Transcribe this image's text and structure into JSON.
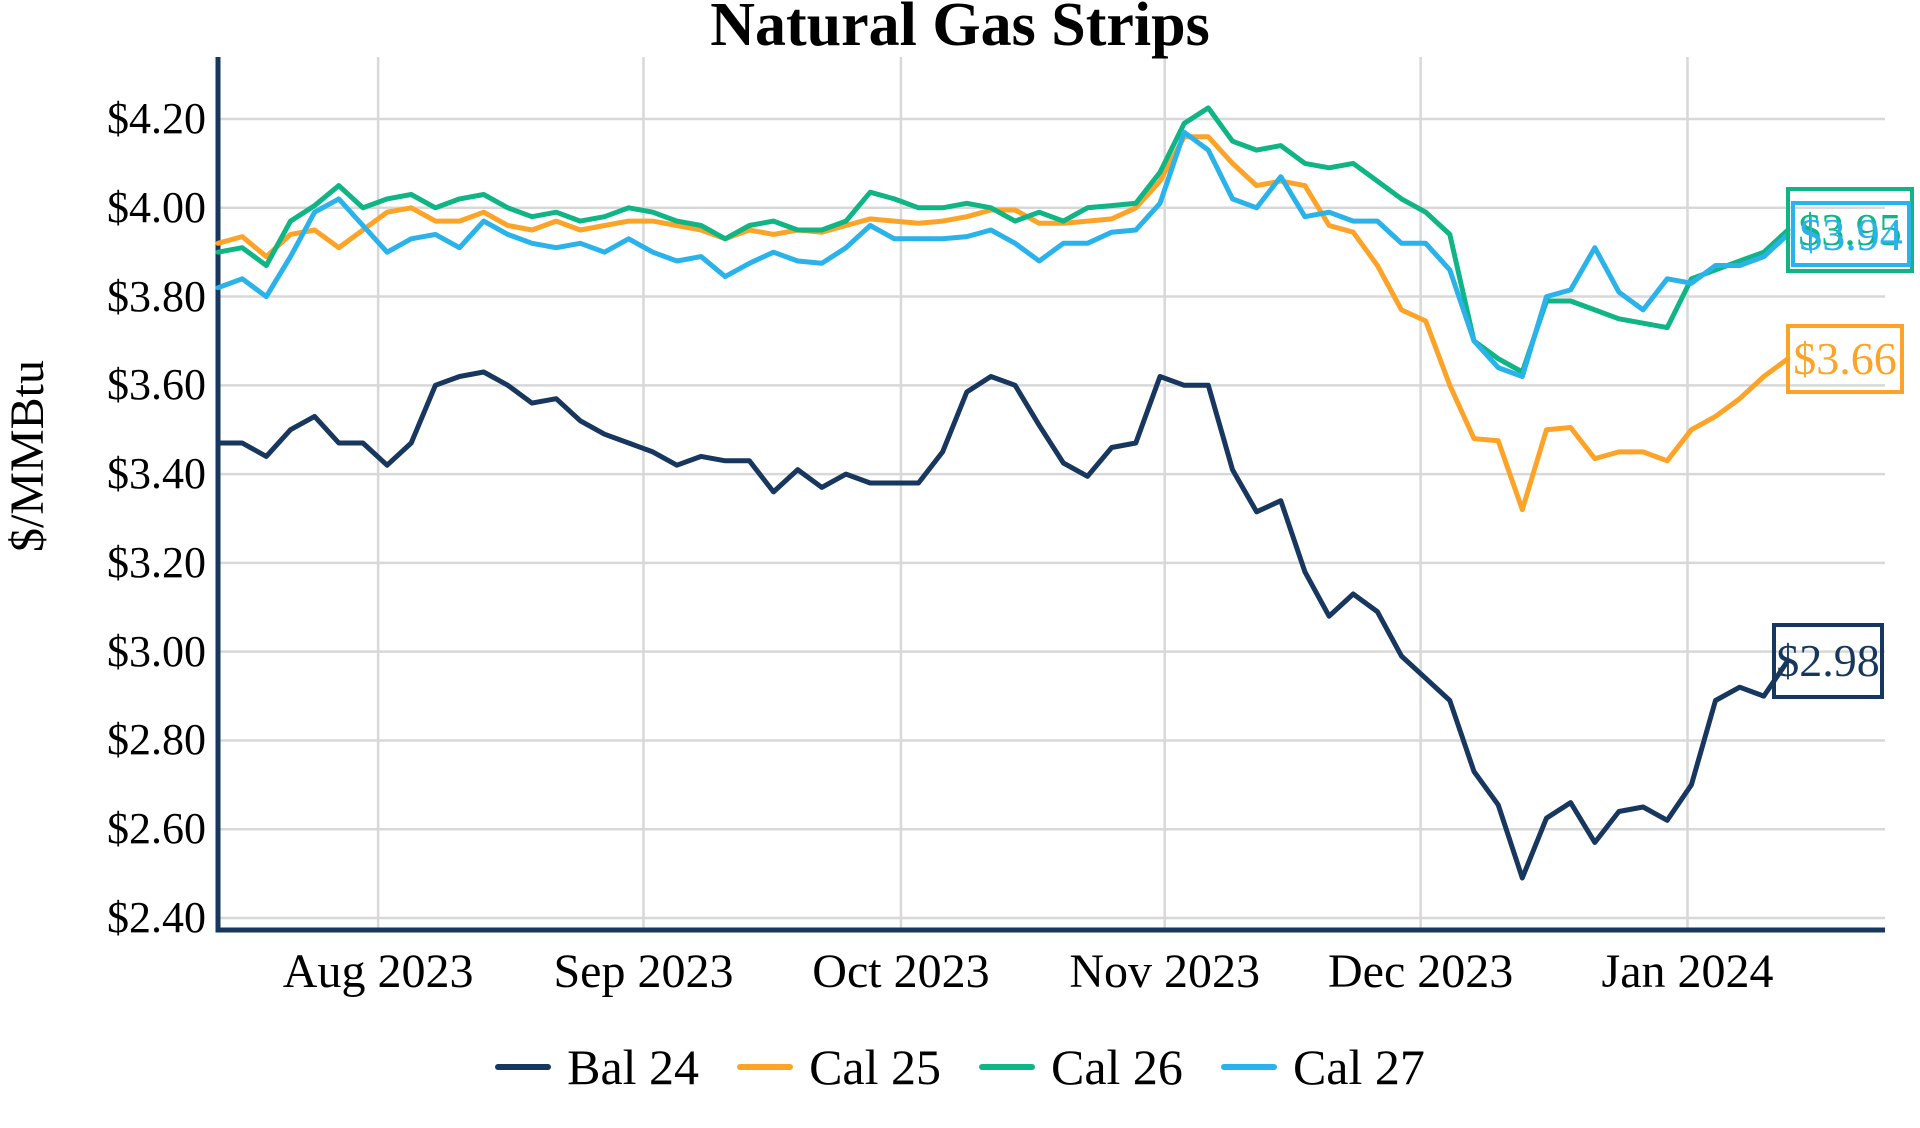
{
  "title": "Natural Gas Strips",
  "colors": {
    "bal24": "#17375E",
    "cal25": "#FDA428",
    "cal26": "#0FB584",
    "cal27": "#2AB2EA",
    "gridline": "#D8D8D8",
    "axis": "#17375E",
    "background": "#FFFFFF"
  },
  "chart_data": {
    "type": "line",
    "title": "Natural Gas Strips",
    "xlabel": "",
    "ylabel": "$/MMBtu",
    "ylim": [
      2.37,
      4.34
    ],
    "grid": "on",
    "legend_position": "bottom-center",
    "x_description": "trading days from mid-July 2023 to mid-January 2024",
    "x_ticks": [
      {
        "label": "Aug 2023",
        "pos": 0.102
      },
      {
        "label": "Sep 2023",
        "pos": 0.271
      },
      {
        "label": "Oct 2023",
        "pos": 0.435
      },
      {
        "label": "Nov 2023",
        "pos": 0.603
      },
      {
        "label": "Dec 2023",
        "pos": 0.766
      },
      {
        "label": "Jan 2024",
        "pos": 0.936
      }
    ],
    "y_ticks": [
      {
        "label": "$4.20",
        "value": 4.2
      },
      {
        "label": "$4.00",
        "value": 4.0
      },
      {
        "label": "$3.80",
        "value": 3.8
      },
      {
        "label": "$3.60",
        "value": 3.6
      },
      {
        "label": "$3.40",
        "value": 3.4
      },
      {
        "label": "$3.20",
        "value": 3.2
      },
      {
        "label": "$3.00",
        "value": 3.0
      },
      {
        "label": "$2.80",
        "value": 2.8
      },
      {
        "label": "$2.60",
        "value": 2.6
      },
      {
        "label": "$2.40",
        "value": 2.4
      }
    ],
    "series": [
      {
        "name": "Bal 24",
        "id": "bal24",
        "end_label": "$2.98",
        "end_value": 2.98,
        "values": [
          3.47,
          3.47,
          3.44,
          3.5,
          3.53,
          3.47,
          3.47,
          3.42,
          3.47,
          3.6,
          3.62,
          3.63,
          3.6,
          3.56,
          3.57,
          3.52,
          3.49,
          3.47,
          3.45,
          3.42,
          3.44,
          3.43,
          3.43,
          3.36,
          3.41,
          3.37,
          3.4,
          3.38,
          3.38,
          3.38,
          3.45,
          3.585,
          3.62,
          3.6,
          3.51,
          3.425,
          3.395,
          3.46,
          3.47,
          3.62,
          3.6,
          3.6,
          3.41,
          3.315,
          3.34,
          3.18,
          3.08,
          3.13,
          3.09,
          2.99,
          2.94,
          2.89,
          2.73,
          2.655,
          2.49,
          2.625,
          2.66,
          2.57,
          2.64,
          2.65,
          2.62,
          2.7,
          2.89,
          2.92,
          2.9,
          2.98
        ]
      },
      {
        "name": "Cal 25",
        "id": "cal25",
        "end_label": "$3.66",
        "end_value": 3.66,
        "values": [
          3.92,
          3.935,
          3.89,
          3.94,
          3.95,
          3.91,
          3.95,
          3.99,
          4.0,
          3.97,
          3.97,
          3.99,
          3.96,
          3.95,
          3.97,
          3.95,
          3.96,
          3.97,
          3.97,
          3.96,
          3.95,
          3.93,
          3.95,
          3.94,
          3.95,
          3.945,
          3.96,
          3.975,
          3.97,
          3.965,
          3.97,
          3.98,
          3.995,
          3.995,
          3.965,
          3.965,
          3.97,
          3.975,
          4.0,
          4.06,
          4.16,
          4.16,
          4.1,
          4.05,
          4.06,
          4.05,
          3.96,
          3.945,
          3.87,
          3.77,
          3.745,
          3.6,
          3.48,
          3.475,
          3.32,
          3.5,
          3.505,
          3.435,
          3.45,
          3.45,
          3.43,
          3.5,
          3.53,
          3.57,
          3.62,
          3.66
        ]
      },
      {
        "name": "Cal 26",
        "id": "cal26",
        "end_label": "$3.95",
        "end_value": 3.95,
        "values": [
          3.9,
          3.91,
          3.87,
          3.97,
          4.005,
          4.05,
          4.0,
          4.02,
          4.03,
          4.0,
          4.02,
          4.03,
          4.0,
          3.98,
          3.99,
          3.97,
          3.98,
          4.0,
          3.99,
          3.97,
          3.96,
          3.93,
          3.96,
          3.97,
          3.95,
          3.95,
          3.97,
          4.035,
          4.02,
          4.0,
          4.0,
          4.01,
          4.0,
          3.97,
          3.99,
          3.97,
          4.0,
          4.005,
          4.01,
          4.08,
          4.19,
          4.225,
          4.15,
          4.13,
          4.14,
          4.1,
          4.09,
          4.1,
          4.06,
          4.02,
          3.99,
          3.94,
          3.7,
          3.66,
          3.63,
          3.79,
          3.79,
          3.77,
          3.75,
          3.74,
          3.73,
          3.84,
          3.86,
          3.88,
          3.9,
          3.95
        ]
      },
      {
        "name": "Cal 27",
        "id": "cal27",
        "end_label": "$3.94",
        "end_value": 3.94,
        "values": [
          3.82,
          3.84,
          3.8,
          3.89,
          3.99,
          4.02,
          3.96,
          3.9,
          3.93,
          3.94,
          3.91,
          3.97,
          3.94,
          3.92,
          3.91,
          3.92,
          3.9,
          3.93,
          3.9,
          3.88,
          3.89,
          3.845,
          3.875,
          3.9,
          3.88,
          3.875,
          3.91,
          3.96,
          3.93,
          3.93,
          3.93,
          3.935,
          3.95,
          3.92,
          3.88,
          3.92,
          3.92,
          3.945,
          3.95,
          4.01,
          4.17,
          4.13,
          4.02,
          4.0,
          4.07,
          3.98,
          3.99,
          3.97,
          3.97,
          3.92,
          3.92,
          3.86,
          3.7,
          3.64,
          3.62,
          3.8,
          3.815,
          3.91,
          3.81,
          3.77,
          3.84,
          3.83,
          3.87,
          3.87,
          3.89,
          3.94
        ]
      }
    ]
  },
  "legend": {
    "items": [
      {
        "label": "Bal 24",
        "series": "bal24"
      },
      {
        "label": "Cal 25",
        "series": "cal25"
      },
      {
        "label": "Cal 26",
        "series": "cal26"
      },
      {
        "label": "Cal 27",
        "series": "cal27"
      }
    ]
  }
}
